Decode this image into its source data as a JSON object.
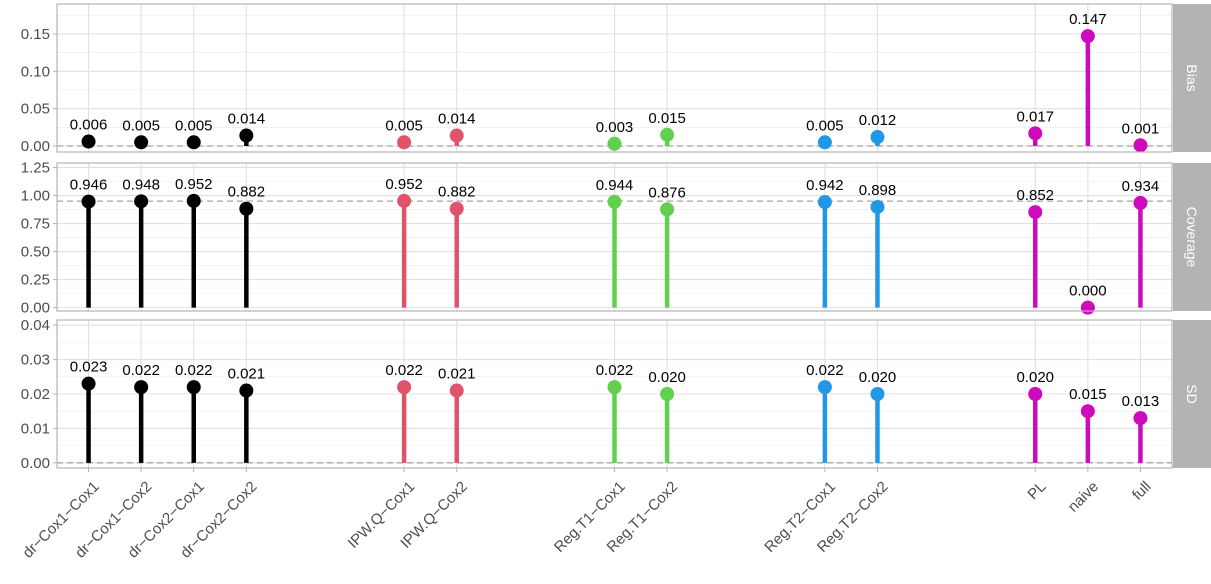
{
  "chart_data": {
    "type": "lollipop",
    "categories": [
      "dr−Cox1−Cox1",
      "dr−Cox1−Cox2",
      "dr−Cox2−Cox1",
      "dr−Cox2−Cox2",
      "IPW.Q−Cox1",
      "IPW.Q−Cox2",
      "Reg.T1−Cox1",
      "Reg.T1−Cox2",
      "Reg.T2−Cox1",
      "Reg.T2−Cox2",
      "PL",
      "naive",
      "full"
    ],
    "category_slots": [
      1,
      2,
      3,
      4,
      7,
      8,
      11,
      12,
      15,
      16,
      19,
      20,
      21
    ],
    "category_colors": [
      "#000000",
      "#000000",
      "#000000",
      "#000000",
      "#df536b",
      "#df536b",
      "#61d04f",
      "#61d04f",
      "#2297e6",
      "#2297e6",
      "#cd0bbc",
      "#cd0bbc",
      "#cd0bbc"
    ],
    "panels": [
      {
        "strip": "Bias",
        "values": [
          0.006,
          0.005,
          0.005,
          0.014,
          0.005,
          0.014,
          0.003,
          0.015,
          0.005,
          0.012,
          0.017,
          0.147,
          0.001
        ],
        "labels": [
          "0.006",
          "0.005",
          "0.005",
          "0.014",
          "0.005",
          "0.014",
          "0.003",
          "0.015",
          "0.005",
          "0.012",
          "0.017",
          "0.147",
          "0.001"
        ],
        "yticks": [
          "0.00",
          "0.05",
          "0.10",
          "0.15"
        ],
        "ylim": [
          -0.008,
          0.19
        ],
        "reference_line": 0
      },
      {
        "strip": "Coverage",
        "values": [
          0.946,
          0.948,
          0.952,
          0.882,
          0.952,
          0.882,
          0.944,
          0.876,
          0.942,
          0.898,
          0.852,
          0.0,
          0.934
        ],
        "labels": [
          "0.946",
          "0.948",
          "0.952",
          "0.882",
          "0.952",
          "0.882",
          "0.944",
          "0.876",
          "0.942",
          "0.898",
          "0.852",
          "0.000",
          "0.934"
        ],
        "yticks": [
          "0.00",
          "0.25",
          "0.50",
          "0.75",
          "1.00",
          "1.25"
        ],
        "ylim": [
          -0.03,
          1.29
        ],
        "reference_line": 0.95
      },
      {
        "strip": "SD",
        "values": [
          0.023,
          0.022,
          0.022,
          0.021,
          0.022,
          0.021,
          0.022,
          0.02,
          0.022,
          0.02,
          0.02,
          0.015,
          0.013
        ],
        "labels": [
          "0.023",
          "0.022",
          "0.022",
          "0.021",
          "0.022",
          "0.021",
          "0.022",
          "0.020",
          "0.022",
          "0.020",
          "0.020",
          "0.015",
          "0.013"
        ],
        "yticks": [
          "0.00",
          "0.01",
          "0.02",
          "0.03",
          "0.04"
        ],
        "ylim": [
          -0.0015,
          0.0415
        ],
        "reference_line": 0
      }
    ],
    "grid": true,
    "legend": "none"
  }
}
